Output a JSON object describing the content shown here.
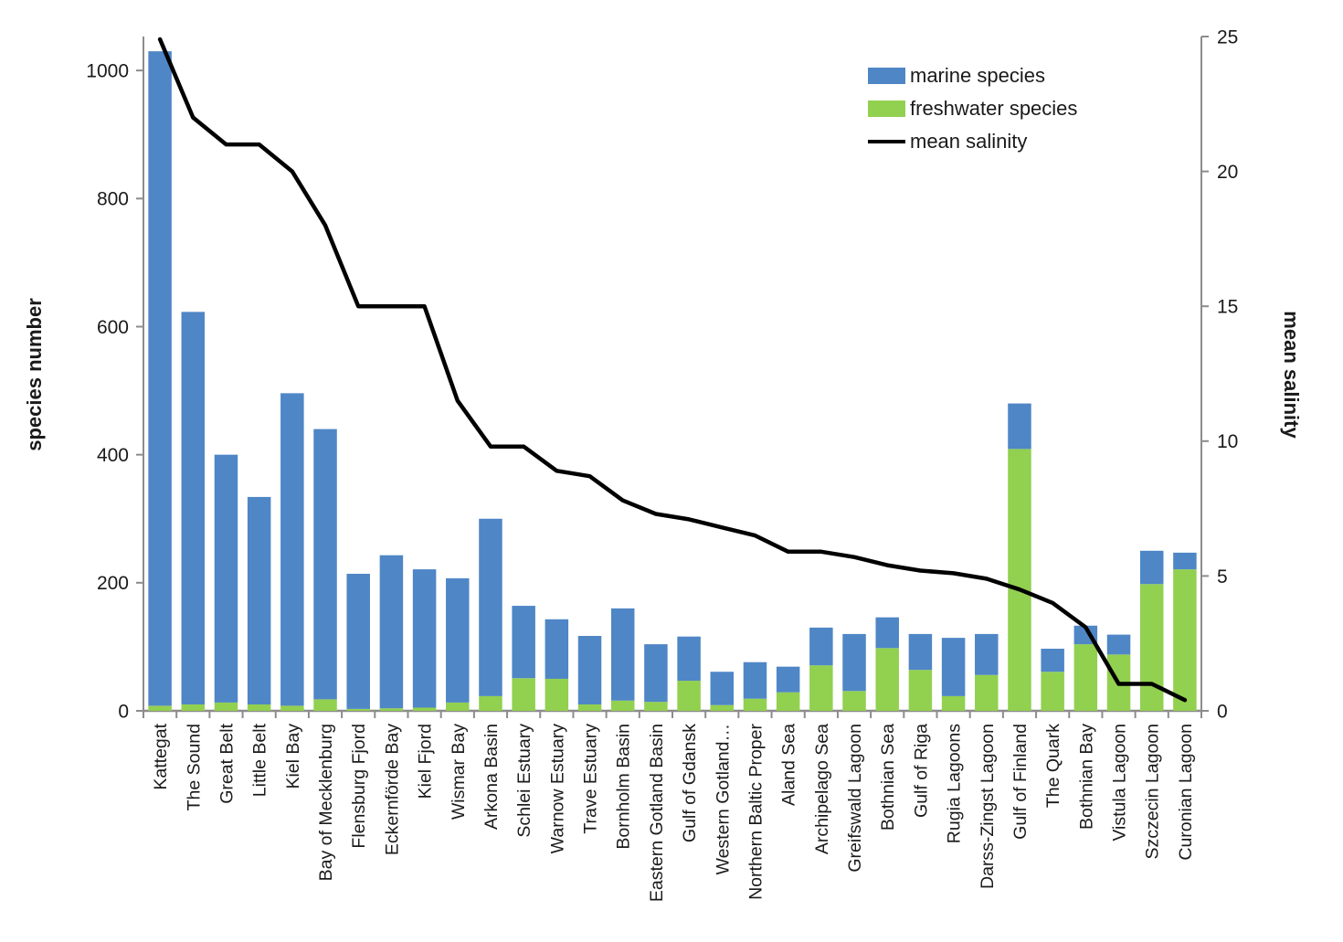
{
  "chart_data": {
    "type": "bar",
    "subtype": "stacked-bars-with-line-overlay",
    "title": "",
    "categories": [
      "Kattegat",
      "The Sound",
      "Great Belt",
      "Little Belt",
      "Kiel Bay",
      "Bay of Mecklenburg",
      "Flensburg Fjord",
      "Eckernförde Bay",
      "Kiel Fjord",
      "Wismar Bay",
      "Arkona Basin",
      "Schlei Estuary",
      "Warnow Estuary",
      "Trave Estuary",
      "Bornholm Basin",
      "Eastern Gotland Basin",
      "Gulf of Gdansk",
      "Western Gotland…",
      "Northern Baltic Proper",
      "Aland Sea",
      "Archipelago Sea",
      "Greifswald Lagoon",
      "Bothnian Sea",
      "Gulf of Riga",
      "Rugia Lagoons",
      "Darss-Zingst Lagoon",
      "Gulf of Finland",
      "The Quark",
      "Bothnian Bay",
      "Vistula Lagoon",
      "Szczecin Lagoon",
      "Curonian Lagoon"
    ],
    "series": [
      {
        "name": "marine species",
        "type": "bar",
        "stack": "species",
        "axis": "left",
        "color": "#4F86C6",
        "values": [
          1022,
          613,
          387,
          324,
          488,
          422,
          211,
          239,
          216,
          194,
          277,
          113,
          93,
          107,
          144,
          90,
          69,
          52,
          57,
          40,
          59,
          89,
          48,
          56,
          91,
          64,
          71,
          36,
          29,
          31,
          52,
          26
        ]
      },
      {
        "name": "freshwater species",
        "type": "bar",
        "stack": "species",
        "axis": "left",
        "color": "#92D050",
        "values": [
          8,
          10,
          13,
          10,
          8,
          18,
          3,
          4,
          5,
          13,
          23,
          51,
          50,
          10,
          16,
          14,
          47,
          9,
          19,
          29,
          71,
          31,
          98,
          64,
          23,
          56,
          409,
          61,
          104,
          88,
          198,
          221
        ]
      },
      {
        "name": "mean salinity",
        "type": "line",
        "axis": "right",
        "color": "#000000",
        "values": [
          24.9,
          22.0,
          21.0,
          21.0,
          20.0,
          18.0,
          15.0,
          15.0,
          15.0,
          11.5,
          9.8,
          9.8,
          8.9,
          8.7,
          7.8,
          7.3,
          7.1,
          6.8,
          6.5,
          5.9,
          5.9,
          5.7,
          5.4,
          5.2,
          5.1,
          4.9,
          4.5,
          4.0,
          3.1,
          1.0,
          1.0,
          0.4
        ]
      }
    ],
    "left_axis": {
      "title": "species number",
      "ticks": [
        0,
        200,
        400,
        600,
        800,
        1000
      ],
      "min": 0,
      "max": 1053
    },
    "right_axis": {
      "title": "mean salinity",
      "ticks": [
        0,
        5,
        10,
        15,
        20,
        25
      ],
      "min": 0,
      "max": 25
    },
    "legend": [
      {
        "label": "marine species",
        "color": "#4F86C6",
        "marker": "rect"
      },
      {
        "label": "freshwater species",
        "color": "#92D050",
        "marker": "rect"
      },
      {
        "label": "mean salinity",
        "color": "#000000",
        "marker": "line"
      }
    ],
    "legend_position": "top-right-inside",
    "grid": "off",
    "axis_line_color": "#8C8C8C",
    "text_color": "#1a1a1a",
    "background": "#ffffff"
  }
}
